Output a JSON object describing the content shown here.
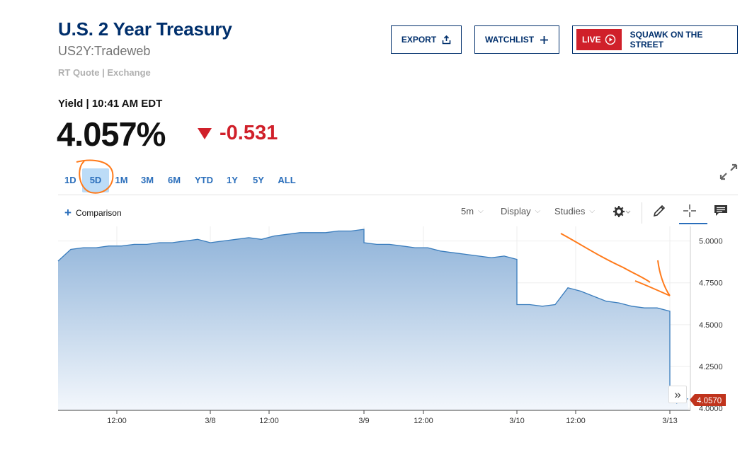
{
  "header": {
    "title": "U.S. 2 Year Treasury",
    "symbol": "US2Y:Tradeweb",
    "quote_source": "RT Quote | Exchange"
  },
  "actions": {
    "export_label": "EXPORT",
    "watchlist_label": "WATCHLIST",
    "live_label": "LIVE",
    "squawk_label": "SQUAWK ON THE STREET"
  },
  "quote": {
    "yield_label": "Yield | 10:41 AM EDT",
    "price": "4.057%",
    "change": "-0.531",
    "direction_icon": "triangle-down-icon"
  },
  "ranges": [
    "1D",
    "5D",
    "1M",
    "3M",
    "6M",
    "YTD",
    "1Y",
    "5Y",
    "ALL"
  ],
  "selected_range": "5D",
  "toolbar": {
    "comparison_label": "Comparison",
    "interval_label": "5m",
    "display_label": "Display",
    "studies_label": "Studies",
    "icons": [
      "gear-icon",
      "pencil-icon",
      "crosshair-icon",
      "comment-icon",
      "expand-icon"
    ]
  },
  "colors": {
    "brand": "#002f6c",
    "accent": "#2a6ebb",
    "down": "#d0202a",
    "line": "#3a7dbd",
    "area_top": "#8fb3d9",
    "area_bottom": "#f3f7fc",
    "annotation": "#ff7a1a"
  },
  "chart_data": {
    "type": "area",
    "ylim": [
      4.0,
      5.1
    ],
    "yticks": [
      "5.0000",
      "4.7500",
      "4.5000",
      "4.2500",
      "4.0000"
    ],
    "xticks": [
      "12:00",
      "3/8",
      "12:00",
      "3/9",
      "12:00",
      "3/10",
      "12:00",
      "3/13"
    ],
    "last_value_label": "4.0570",
    "series": [
      {
        "x": [
          "3/7 08:00",
          "3/7 09:00",
          "3/7 10:00",
          "3/7 11:00",
          "3/7 12:00",
          "3/7 13:00",
          "3/7 14:00",
          "3/7 15:00",
          "3/7 16:00",
          "3/7 17:00",
          "3/7 18:00",
          "3/7 19:00",
          "3/7 20:00",
          "3/8 08:00",
          "3/8 09:00",
          "3/8 10:00",
          "3/8 11:00",
          "3/8 12:00",
          "3/8 13:00",
          "3/8 14:00",
          "3/8 15:00",
          "3/8 16:00",
          "3/8 17:00",
          "3/8 18:00",
          "3/8 19:00",
          "3/8 20:00",
          "3/9 08:00",
          "3/9 09:00",
          "3/9 10:00",
          "3/9 11:00",
          "3/9 12:00",
          "3/9 13:00",
          "3/9 14:00",
          "3/9 15:00",
          "3/9 16:00",
          "3/9 17:00",
          "3/9 18:00",
          "3/9 19:00",
          "3/9 20:00",
          "3/10 08:00",
          "3/10 09:00",
          "3/10 10:00",
          "3/10 11:00",
          "3/10 12:00",
          "3/10 13:00",
          "3/10 14:00",
          "3/10 15:00",
          "3/10 16:00",
          "3/10 17:00",
          "3/10 18:00",
          "3/10 19:00",
          "3/10 20:00",
          "3/13 08:00",
          "3/13 09:00",
          "3/13 10:00",
          "3/13 10:41"
        ],
        "values": [
          4.88,
          4.95,
          4.96,
          4.96,
          4.97,
          4.97,
          4.98,
          4.98,
          4.99,
          4.99,
          5.0,
          5.01,
          4.99,
          4.99,
          5.0,
          5.01,
          5.02,
          5.01,
          5.03,
          5.04,
          5.05,
          5.05,
          5.05,
          5.06,
          5.06,
          5.07,
          4.99,
          4.98,
          4.98,
          4.97,
          4.96,
          4.96,
          4.94,
          4.93,
          4.92,
          4.91,
          4.9,
          4.91,
          4.89,
          4.62,
          4.62,
          4.61,
          4.62,
          4.72,
          4.7,
          4.67,
          4.64,
          4.63,
          4.61,
          4.6,
          4.6,
          4.58,
          4.1,
          4.03,
          4.05,
          4.057
        ]
      }
    ]
  }
}
